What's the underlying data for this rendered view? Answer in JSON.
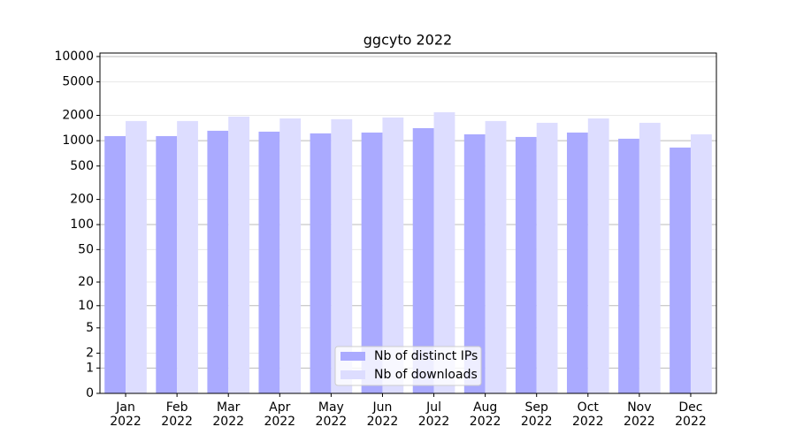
{
  "chart_data": {
    "type": "bar",
    "title": "ggcyto 2022",
    "categories": [
      "Jan\n2022",
      "Feb\n2022",
      "Mar\n2022",
      "Apr\n2022",
      "May\n2022",
      "Jun\n2022",
      "Jul\n2022",
      "Aug\n2022",
      "Sep\n2022",
      "Oct\n2022",
      "Nov\n2022",
      "Dec\n2022"
    ],
    "series": [
      {
        "name": "Nb of distinct IPs",
        "color": "#aaaaff",
        "values": [
          1135,
          1135,
          1313,
          1281,
          1222,
          1250,
          1410,
          1192,
          1108,
          1250,
          1056,
          829
        ]
      },
      {
        "name": "Nb of downloads",
        "color": "#ddddff",
        "values": [
          1713,
          1713,
          1933,
          1840,
          1800,
          1888,
          2180,
          1713,
          1633,
          1840,
          1633,
          1192
        ]
      }
    ],
    "yscale": "log1p",
    "ylim": [
      0,
      11000
    ],
    "yticks": [
      0,
      1,
      2,
      5,
      10,
      20,
      50,
      100,
      200,
      500,
      1000,
      2000,
      5000,
      10000
    ],
    "grid": true,
    "legend": "lower center"
  }
}
